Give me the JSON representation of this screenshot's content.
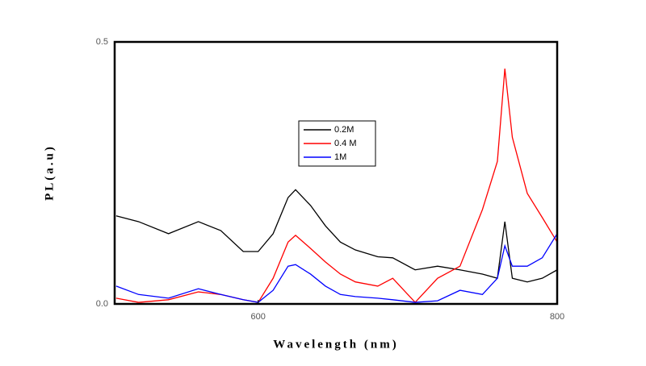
{
  "chart_data": {
    "type": "line",
    "x_label": "Wavelength (nm)",
    "y_label": "PL(a.u)",
    "x": [
      505,
      520,
      540,
      560,
      575,
      590,
      600,
      610,
      620,
      625,
      635,
      645,
      655,
      665,
      680,
      690,
      705,
      720,
      735,
      750,
      760,
      765,
      770,
      780,
      790,
      800
    ],
    "series": [
      {
        "name": "0.2M",
        "color": "#000000",
        "values": [
          0.168,
          0.157,
          0.134,
          0.157,
          0.14,
          0.1,
          0.1,
          0.134,
          0.203,
          0.218,
          0.188,
          0.149,
          0.118,
          0.103,
          0.09,
          0.088,
          0.065,
          0.072,
          0.065,
          0.057,
          0.049,
          0.157,
          0.049,
          0.042,
          0.049,
          0.065
        ]
      },
      {
        "name": "0.4 M",
        "color": "#ff0000",
        "values": [
          0.011,
          0.003,
          0.008,
          0.023,
          0.018,
          0.008,
          0.003,
          0.049,
          0.118,
          0.131,
          0.106,
          0.08,
          0.057,
          0.042,
          0.034,
          0.049,
          0.003,
          0.049,
          0.072,
          0.18,
          0.272,
          0.449,
          0.318,
          0.211,
          0.165,
          0.118
        ]
      },
      {
        "name": "1M",
        "color": "#0000ff",
        "values": [
          0.034,
          0.018,
          0.011,
          0.029,
          0.018,
          0.008,
          0.003,
          0.026,
          0.072,
          0.075,
          0.057,
          0.034,
          0.018,
          0.014,
          0.011,
          0.008,
          0.003,
          0.006,
          0.026,
          0.018,
          0.049,
          0.111,
          0.072,
          0.072,
          0.088,
          0.134
        ]
      }
    ],
    "xlim": [
      504,
      800
    ],
    "xticks": [
      600,
      800
    ],
    "ylim": [
      0,
      0.5
    ],
    "yticks": [
      {
        "value": 0,
        "label": "0.0"
      },
      0.5
    ]
  }
}
